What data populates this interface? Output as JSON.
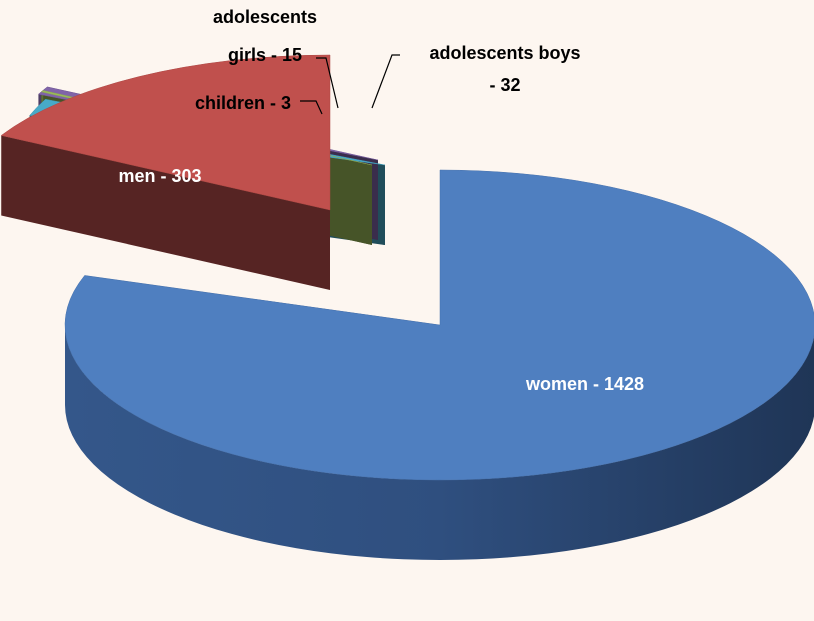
{
  "chart_data": {
    "type": "pie",
    "style": "3d-exploded",
    "title": "",
    "legend": "none",
    "slices": [
      {
        "name": "women",
        "value": 1428,
        "label_line1": "women - 1428",
        "label_line2": "",
        "label_color": "#ffffff",
        "color": "#4f7fc0"
      },
      {
        "name": "adolescents boys",
        "value": 32,
        "label_line1": "adolescents boys",
        "label_line2": "- 32",
        "label_color": "#000000",
        "color": "#48aac8"
      },
      {
        "name": "adolescents girls",
        "value": 15,
        "label_line1": "adolescents",
        "label_line2": "girls - 15",
        "label_color": "#000000",
        "color": "#8064a8"
      },
      {
        "name": "children",
        "value": 3,
        "label_line1": "children - 3",
        "label_line2": "",
        "label_color": "#000000",
        "color": "#9bbb59"
      },
      {
        "name": "men",
        "value": 303,
        "label_line1": "men - 303",
        "label_line2": "",
        "label_color": "#ffffff",
        "color": "#c0504d"
      }
    ]
  }
}
